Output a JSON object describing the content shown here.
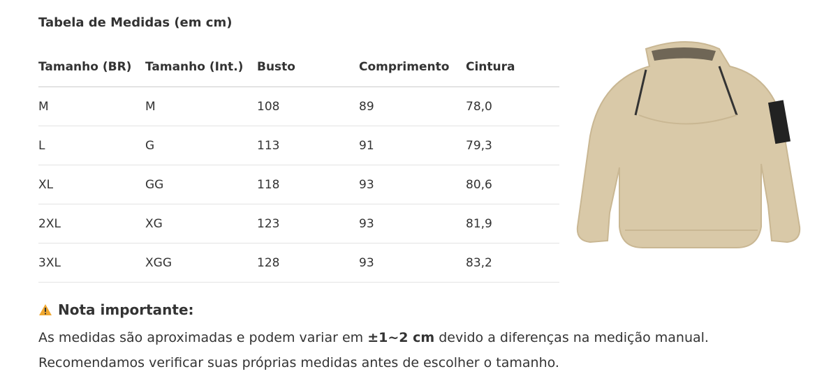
{
  "title": "Tabela de Medidas (em cm)",
  "table": {
    "headers": [
      "Tamanho (BR)",
      "Tamanho (Int.)",
      "Busto",
      "Comprimento",
      "Cintura"
    ],
    "rows": [
      [
        "M",
        "M",
        "108",
        "89",
        "78,0"
      ],
      [
        "L",
        "G",
        "113",
        "91",
        "79,3"
      ],
      [
        "XL",
        "GG",
        "118",
        "93",
        "80,6"
      ],
      [
        "2XL",
        "XG",
        "123",
        "93",
        "81,9"
      ],
      [
        "3XL",
        "XGG",
        "128",
        "93",
        "83,2"
      ]
    ]
  },
  "note": {
    "icon": "warning-icon",
    "heading": "Nota importante:",
    "text_before": "As medidas são aproximadas e podem variar em ",
    "text_bold": "±1~2 cm",
    "text_after": " devido a diferenças na medição manual. Recomendamos verificar suas próprias medidas antes de escolher o tamanho."
  },
  "colors": {
    "text": "#333333",
    "sweater": "#d9c9a8",
    "warning": "#f0a830"
  }
}
